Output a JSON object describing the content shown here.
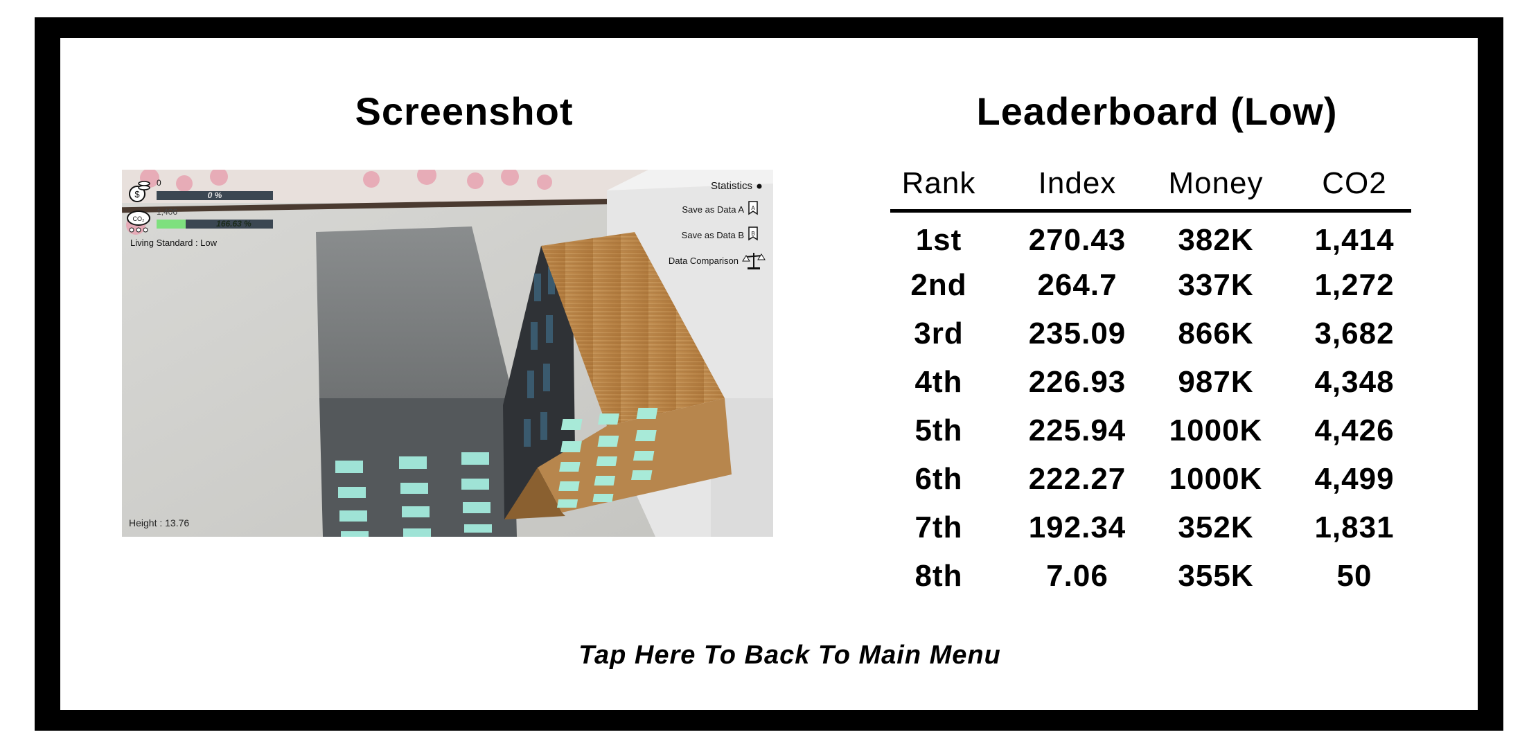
{
  "screenshot_title": "Screenshot",
  "leaderboard_title": "Leaderboard (Low)",
  "back_label": "Tap Here To Back To Main Menu",
  "hud": {
    "money_value": "0",
    "money_percent": "0 %",
    "co2_value": "1,406",
    "co2_percent": "166.63 %",
    "living_standard": "Living Standard : Low",
    "height": "Height : 13.76",
    "statistics": "Statistics",
    "save_a": "Save as Data A",
    "save_b": "Save as Data B",
    "comparison": "Data Comparison",
    "co2_fill": 0.25,
    "money_fill": 0
  },
  "columns": [
    "Rank",
    "Index",
    "Money",
    "CO2"
  ],
  "rows": [
    {
      "rank": "1st",
      "index": "270.43",
      "money": "382K",
      "co2": "1,414"
    },
    {
      "rank": "2nd",
      "index": "264.7",
      "money": "337K",
      "co2": "1,272"
    },
    {
      "rank": "3rd",
      "index": "235.09",
      "money": "866K",
      "co2": "3,682"
    },
    {
      "rank": "4th",
      "index": "226.93",
      "money": "987K",
      "co2": "4,348"
    },
    {
      "rank": "5th",
      "index": "225.94",
      "money": "1000K",
      "co2": "4,426"
    },
    {
      "rank": "6th",
      "index": "222.27",
      "money": "1000K",
      "co2": "4,499"
    },
    {
      "rank": "7th",
      "index": "192.34",
      "money": "352K",
      "co2": "1,831"
    },
    {
      "rank": "8th",
      "index": "7.06",
      "money": "355K",
      "co2": "50"
    }
  ],
  "colors": {
    "frame": "#000000",
    "co2_bar": "#7ee07e",
    "bar_track": "#3b4752"
  }
}
